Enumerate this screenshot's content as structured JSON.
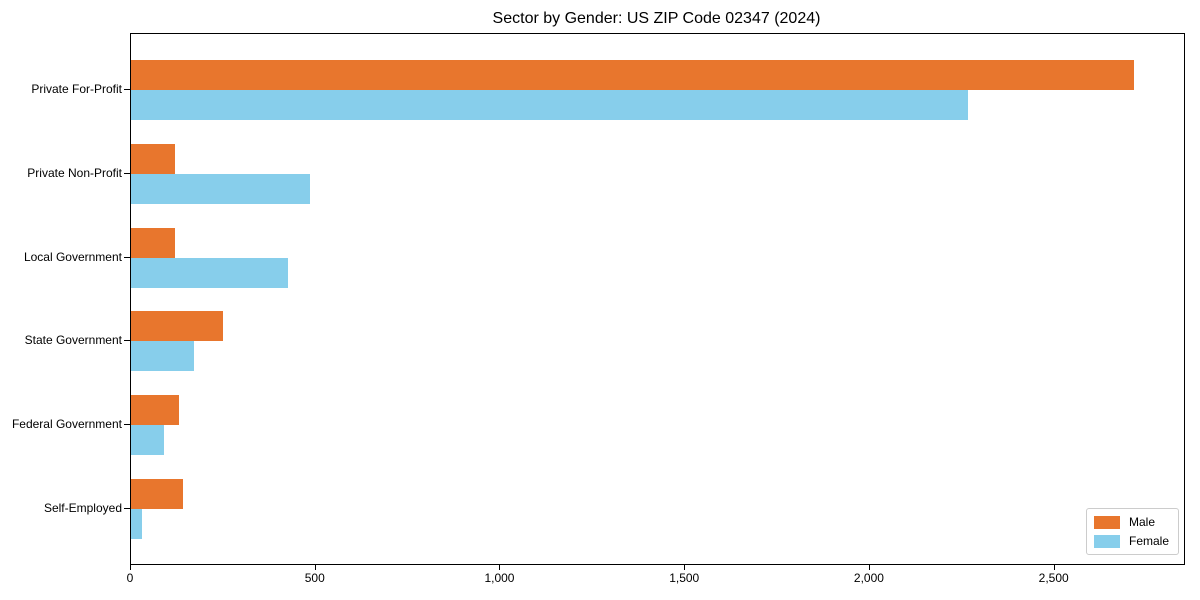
{
  "chart_data": {
    "type": "bar",
    "orientation": "horizontal",
    "title": "Sector by Gender: US ZIP Code 02347 (2024)",
    "categories": [
      "Private For-Profit",
      "Private Non-Profit",
      "Local Government",
      "State Government",
      "Federal Government",
      "Self-Employed"
    ],
    "series": [
      {
        "name": "Male",
        "color": "#e8762d",
        "values": [
          2715,
          120,
          120,
          250,
          130,
          140
        ]
      },
      {
        "name": "Female",
        "color": "#87ceeb",
        "values": [
          2265,
          485,
          425,
          170,
          90,
          30
        ]
      }
    ],
    "xlim": [
      0,
      2850
    ],
    "x_ticks": [
      {
        "value": 0,
        "label": "0"
      },
      {
        "value": 500,
        "label": "500"
      },
      {
        "value": 1000,
        "label": "1,000"
      },
      {
        "value": 1500,
        "label": "1,500"
      },
      {
        "value": 2000,
        "label": "2,000"
      },
      {
        "value": 2500,
        "label": "2,500"
      }
    ],
    "grid": false,
    "legend_position": "lower right"
  }
}
